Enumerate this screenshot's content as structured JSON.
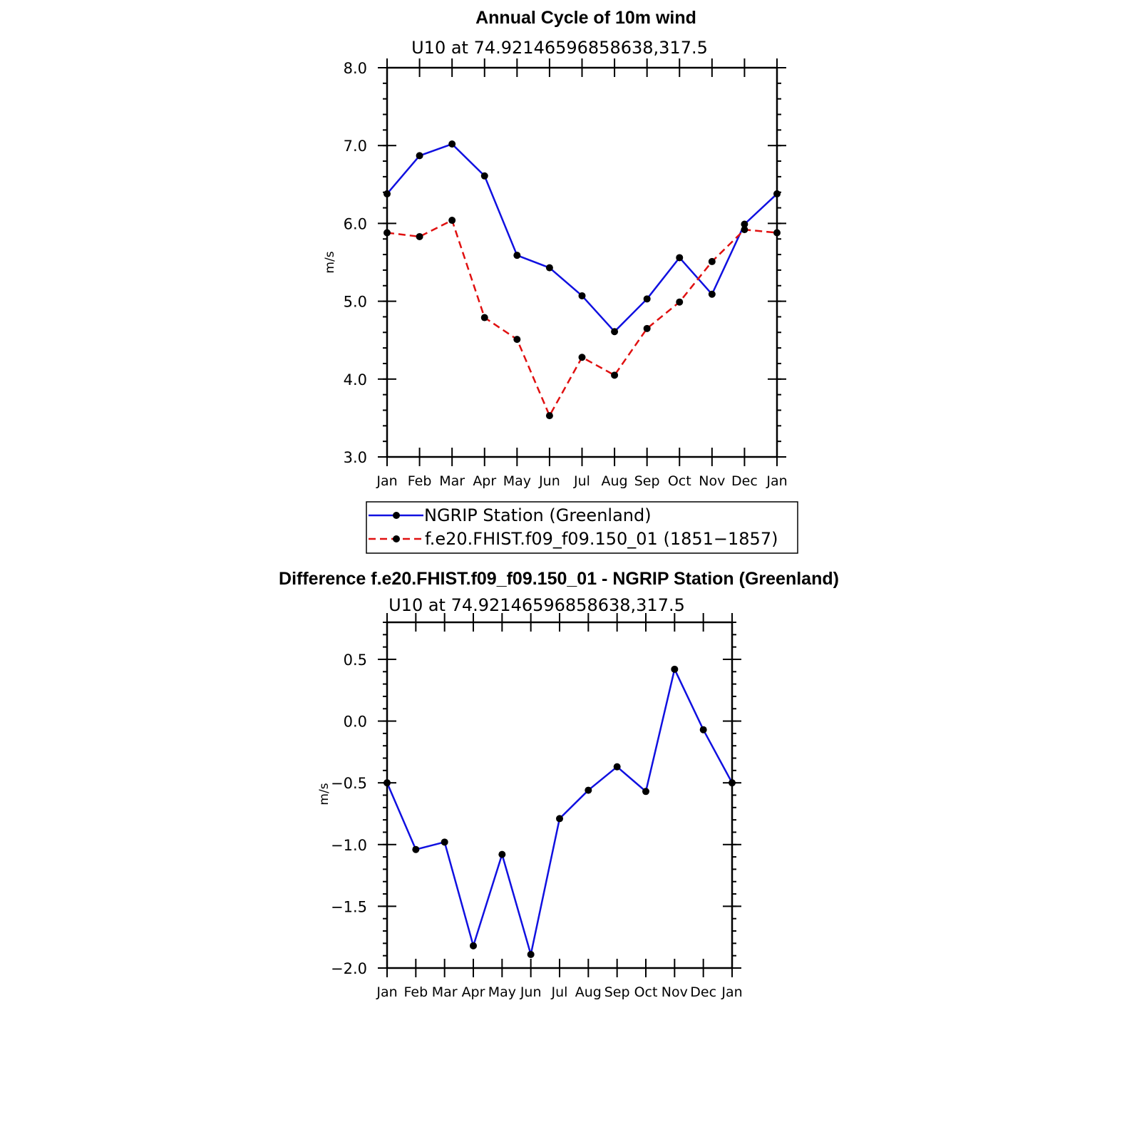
{
  "chart_data": [
    {
      "type": "line",
      "title": "Annual Cycle of 10m wind",
      "subtitle": "U10 at 74.92146596858638,317.5",
      "xlabel": "",
      "ylabel": "m/s",
      "ylim": [
        3.0,
        8.0
      ],
      "y_major_ticks": [
        3.0,
        4.0,
        5.0,
        6.0,
        7.0,
        8.0
      ],
      "y_tick_labels": [
        "3.0",
        "4.0",
        "5.0",
        "6.0",
        "7.0",
        "8.0"
      ],
      "categories": [
        "Jan",
        "Feb",
        "Mar",
        "Apr",
        "May",
        "Jun",
        "Jul",
        "Aug",
        "Sep",
        "Oct",
        "Nov",
        "Dec",
        "Jan"
      ],
      "series": [
        {
          "name": "NGRIP Station (Greenland)",
          "color": "#1010e0",
          "dash": "solid",
          "values": [
            6.38,
            6.87,
            7.02,
            6.61,
            5.59,
            5.43,
            5.07,
            4.61,
            5.03,
            5.56,
            5.09,
            5.99,
            6.38
          ]
        },
        {
          "name": "f.e20.FHIST.f09_f09.150_01 (1851−1857)",
          "color": "#e01010",
          "dash": "dashed",
          "values": [
            5.88,
            5.83,
            6.04,
            4.79,
            4.51,
            3.53,
            4.28,
            4.05,
            4.65,
            4.99,
            5.51,
            5.92,
            5.88
          ]
        }
      ],
      "legend": "bottom"
    },
    {
      "type": "line",
      "title": "Difference f.e20.FHIST.f09_f09.150_01 - NGRIP Station (Greenland)",
      "subtitle": "U10 at 74.92146596858638,317.5",
      "xlabel": "",
      "ylabel": "m/s",
      "ylim": [
        -2.0,
        0.8
      ],
      "y_major_ticks": [
        -2.0,
        -1.5,
        -1.0,
        -0.5,
        0.0,
        0.5
      ],
      "y_tick_labels": [
        "−2.0",
        "−1.5",
        "−1.0",
        "−0.5",
        "0.0",
        "0.5"
      ],
      "categories": [
        "Jan",
        "Feb",
        "Mar",
        "Apr",
        "May",
        "Jun",
        "Jul",
        "Aug",
        "Sep",
        "Oct",
        "Nov",
        "Dec",
        "Jan"
      ],
      "series": [
        {
          "name": "Difference",
          "color": "#1010e0",
          "dash": "solid",
          "values": [
            -0.5,
            -1.04,
            -0.98,
            -1.82,
            -1.08,
            -1.89,
            -0.79,
            -0.56,
            -0.37,
            -0.57,
            0.42,
            -0.07,
            -0.5
          ]
        }
      ]
    }
  ]
}
